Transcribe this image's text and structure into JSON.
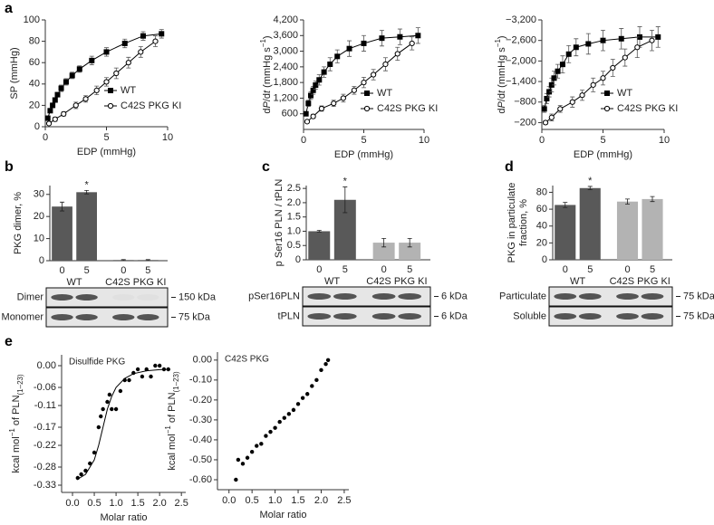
{
  "chart_data": [
    {
      "type": "line",
      "panel": "a",
      "xlabel": "EDP (mmHg)",
      "ylabel": "SP (mmHg)",
      "xlim": [
        0,
        10
      ],
      "xticks": [
        0,
        5,
        10
      ],
      "ylim": [
        0,
        100
      ],
      "yticks": [
        0,
        20,
        40,
        60,
        80,
        100
      ],
      "legend": "lower right",
      "series": [
        {
          "name": "WT",
          "color": "#000000",
          "marker": "square",
          "fill": "#000000",
          "x": [
            0.2,
            0.4,
            0.6,
            0.8,
            1,
            1.3,
            1.7,
            2.2,
            2.8,
            3.8,
            5,
            6.5,
            8,
            9.5
          ],
          "values": [
            8,
            15,
            20,
            25,
            30,
            36,
            42,
            48,
            54,
            62,
            70,
            78,
            85,
            87
          ],
          "errors": [
            1,
            2,
            2,
            2,
            2,
            3,
            3,
            3,
            3,
            4,
            4,
            4,
            4,
            4
          ]
        },
        {
          "name": "C42S PKG KI",
          "color": "#000000",
          "marker": "circle",
          "fill": "#ffffff",
          "x": [
            0.3,
            0.8,
            1.5,
            2.5,
            3.3,
            4.2,
            5,
            5.8,
            6.8,
            7.8,
            9
          ],
          "values": [
            3,
            7,
            12,
            20,
            26,
            34,
            42,
            50,
            60,
            70,
            80
          ],
          "errors": [
            1,
            2,
            2,
            3,
            3,
            4,
            4,
            5,
            5,
            5,
            5
          ]
        }
      ]
    },
    {
      "type": "line",
      "xlabel": "EDP (mmHg)",
      "ylabel": [
        "d",
        {
          "italic": "P"
        },
        "/d",
        {
          "italic": "t"
        },
        " (mmHg s",
        {
          "sup": "−1"
        },
        ")"
      ],
      "xlim": [
        0,
        10
      ],
      "xticks": [
        0,
        5,
        10
      ],
      "ylim": [
        0,
        4200
      ],
      "yticks": [
        600,
        {
          "value": 1200,
          "label": "1,200"
        },
        {
          "value": 1800,
          "label": "1,800"
        },
        {
          "value": 2400,
          "label": "2,400"
        },
        {
          "value": 3000,
          "label": "3,000"
        },
        {
          "value": 3600,
          "label": "3,600"
        },
        {
          "value": 4200,
          "label": "4,200"
        }
      ],
      "legend": "lower right",
      "series": [
        {
          "name": "WT",
          "color": "#000000",
          "marker": "square",
          "fill": "#000000",
          "x": [
            0.2,
            0.4,
            0.6,
            0.8,
            1,
            1.3,
            1.7,
            2.2,
            2.8,
            3.8,
            5,
            6.5,
            8,
            9.5
          ],
          "values": [
            600,
            1000,
            1300,
            1500,
            1700,
            1900,
            2200,
            2500,
            2800,
            3100,
            3300,
            3500,
            3550,
            3600
          ],
          "errors": [
            80,
            120,
            150,
            150,
            150,
            200,
            200,
            250,
            250,
            300,
            300,
            300,
            300,
            300
          ]
        },
        {
          "name": "C42S PKG KI",
          "color": "#000000",
          "marker": "circle",
          "fill": "#ffffff",
          "x": [
            0.3,
            0.8,
            1.5,
            2.5,
            3.3,
            4.2,
            5,
            5.8,
            6.8,
            7.8,
            9
          ],
          "values": [
            300,
            500,
            800,
            1000,
            1200,
            1500,
            1800,
            2100,
            2500,
            2900,
            3300
          ],
          "errors": [
            50,
            80,
            100,
            120,
            150,
            150,
            200,
            200,
            250,
            250,
            250
          ]
        }
      ]
    },
    {
      "type": "line",
      "xlabel": "EDP (mmHg)",
      "ylabel": [
        "d",
        {
          "italic": "P"
        },
        "/d",
        {
          "italic": "t"
        },
        " (mmHg s",
        {
          "sup": "−1"
        },
        ")"
      ],
      "xlim": [
        0,
        10
      ],
      "xticks": [
        0,
        5,
        10
      ],
      "ylim": [
        0,
        -3200
      ],
      "yticks": [
        {
          "value": -200,
          "label": "−200"
        },
        {
          "value": -800,
          "label": "−800"
        },
        {
          "value": -1400,
          "label": "−1,400"
        },
        {
          "value": -2000,
          "label": "−2,000"
        },
        {
          "value": -2600,
          "label": "−2,600"
        },
        {
          "value": -3200,
          "label": "−3,200"
        }
      ],
      "legend": "lower right",
      "series": [
        {
          "name": "WT",
          "color": "#000000",
          "marker": "square",
          "fill": "#000000",
          "x": [
            0.2,
            0.4,
            0.6,
            0.8,
            1,
            1.3,
            1.7,
            2.2,
            2.8,
            3.8,
            5,
            6.5,
            8,
            9.5
          ],
          "values": [
            -600,
            -900,
            -1100,
            -1300,
            -1500,
            -1700,
            -1900,
            -2200,
            -2400,
            -2500,
            -2600,
            -2650,
            -2700,
            -2700
          ],
          "errors": [
            100,
            150,
            150,
            200,
            200,
            200,
            250,
            250,
            250,
            300,
            300,
            300,
            300,
            300
          ]
        },
        {
          "name": "C42S PKG KI",
          "color": "#000000",
          "marker": "circle",
          "fill": "#ffffff",
          "x": [
            0.3,
            0.8,
            1.5,
            2.5,
            3.3,
            4.2,
            5,
            5.8,
            6.8,
            7.8,
            9
          ],
          "values": [
            -200,
            -350,
            -600,
            -800,
            -1000,
            -1300,
            -1500,
            -1800,
            -2100,
            -2400,
            -2600
          ],
          "errors": [
            50,
            100,
            100,
            150,
            150,
            200,
            200,
            250,
            250,
            300,
            300
          ]
        }
      ]
    },
    {
      "type": "bar",
      "panel": "b",
      "ylabel": "PKG dimer, %",
      "ylim": [
        0,
        34
      ],
      "yticks": [
        0,
        10,
        20,
        30
      ],
      "groups": [
        {
          "name": "WT",
          "color": "#595959",
          "categories": [
            "0",
            "5"
          ],
          "values": [
            24.5,
            31
          ],
          "errors": [
            2,
            0.8
          ],
          "labels": [
            null,
            "*"
          ]
        },
        {
          "name": "C42S PKG KI",
          "color": "#595959",
          "categories": [
            "0",
            "5"
          ],
          "values": [
            0.3,
            0.3
          ],
          "errors": [
            0.2,
            0.2
          ],
          "labels": [
            null,
            null
          ]
        }
      ],
      "blot": {
        "rows": [
          "Dimer",
          "Monomer"
        ],
        "markers": [
          "150 kDa",
          "75 kDa"
        ]
      }
    },
    {
      "type": "bar",
      "panel": "c",
      "ylabel": "p Ser16 PLN / tPLN",
      "ylim": [
        0,
        2.6
      ],
      "yticks": [
        0,
        0.5,
        {
          "value": 1,
          "label": "1.0"
        },
        1.5,
        {
          "value": 2,
          "label": "2.0"
        },
        2.5
      ],
      "groups": [
        {
          "name": "WT",
          "color": "#595959",
          "categories": [
            "0",
            "5"
          ],
          "values": [
            1.0,
            2.1
          ],
          "errors": [
            0.03,
            0.45
          ],
          "labels": [
            null,
            "*"
          ]
        },
        {
          "name": "C42S PKG KI",
          "color": "#b3b3b3",
          "categories": [
            "0",
            "5"
          ],
          "values": [
            0.6,
            0.6
          ],
          "errors": [
            0.15,
            0.15
          ],
          "labels": [
            null,
            null
          ]
        }
      ],
      "blot": {
        "rows": [
          "pSer16PLN",
          "tPLN"
        ],
        "markers": [
          "6 kDa",
          "6 kDa"
        ]
      }
    },
    {
      "type": "bar",
      "panel": "d",
      "ylabel_lines": [
        "PKG in particulate",
        "fraction, %"
      ],
      "ylim": [
        0,
        88
      ],
      "yticks": [
        0,
        20,
        40,
        60,
        80
      ],
      "groups": [
        {
          "name": "WT",
          "color": "#595959",
          "categories": [
            "0",
            "5"
          ],
          "values": [
            65,
            85
          ],
          "errors": [
            3,
            2
          ],
          "labels": [
            null,
            "*"
          ]
        },
        {
          "name": "C42S PKG KI",
          "color": "#b3b3b3",
          "categories": [
            "0",
            "5"
          ],
          "values": [
            69,
            72
          ],
          "errors": [
            3,
            3
          ],
          "labels": [
            null,
            null
          ]
        }
      ],
      "blot": {
        "rows": [
          "Particulate",
          "Soluble"
        ],
        "markers": [
          "75 kDa",
          "75 kDa"
        ]
      }
    },
    {
      "type": "scatter",
      "panel": "e",
      "annotation": "Disulfide PKG",
      "xlabel": "Molar ratio",
      "ylabel": [
        "kcal mol",
        {
          "sup": "−1"
        },
        " of PLN",
        {
          "sub": "(1–23)"
        }
      ],
      "xlim": [
        -0.25,
        2.6
      ],
      "xticks": [
        {
          "value": 0,
          "label": "0.0"
        },
        0.5,
        {
          "value": 1,
          "label": "1.0"
        },
        1.5,
        {
          "value": 2,
          "label": "2.0"
        },
        2.5
      ],
      "ylim": [
        -0.35,
        0.03
      ],
      "yticks": [
        {
          "value": 0,
          "label": "0.00"
        },
        -0.06,
        -0.11,
        -0.17,
        -0.22,
        -0.28,
        -0.33
      ],
      "series": [
        {
          "color": "#000000",
          "x": [
            0.12,
            0.2,
            0.3,
            0.4,
            0.5,
            0.6,
            0.65,
            0.7,
            0.8,
            0.85,
            0.9,
            1.0,
            1.1,
            1.2,
            1.3,
            1.4,
            1.5,
            1.6,
            1.7,
            1.8,
            1.9,
            2.0,
            2.1,
            2.2
          ],
          "values": [
            -0.31,
            -0.3,
            -0.29,
            -0.27,
            -0.24,
            -0.17,
            -0.14,
            -0.12,
            -0.1,
            -0.08,
            -0.12,
            -0.12,
            -0.07,
            -0.04,
            -0.04,
            -0.02,
            -0.01,
            -0.03,
            -0.01,
            -0.03,
            0.0,
            0.0,
            -0.01,
            -0.01
          ]
        }
      ],
      "fit": {
        "x": [
          0.1,
          0.3,
          0.5,
          0.6,
          0.7,
          0.8,
          0.9,
          1.0,
          1.2,
          1.4,
          1.7,
          2.0,
          2.2
        ],
        "values": [
          -0.315,
          -0.3,
          -0.26,
          -0.22,
          -0.17,
          -0.12,
          -0.085,
          -0.06,
          -0.035,
          -0.022,
          -0.014,
          -0.011,
          -0.01
        ]
      }
    },
    {
      "type": "scatter",
      "annotation": "C42S PKG",
      "xlabel": "Molar ratio",
      "ylabel": [
        "kcal mol",
        {
          "sup": "−1"
        },
        " of PLN",
        {
          "sub": "(1–23)"
        }
      ],
      "xlim": [
        -0.25,
        2.6
      ],
      "xticks": [
        {
          "value": 0,
          "label": "0.0"
        },
        0.5,
        {
          "value": 1,
          "label": "1.0"
        },
        1.5,
        {
          "value": 2,
          "label": "2.0"
        },
        2.5
      ],
      "ylim": [
        -0.65,
        0.04
      ],
      "yticks": [
        {
          "value": 0,
          "label": "0.00"
        },
        {
          "value": -0.1,
          "label": "-0.10"
        },
        {
          "value": -0.2,
          "label": "-0.20"
        },
        {
          "value": -0.3,
          "label": "-0.30"
        },
        {
          "value": -0.4,
          "label": "-0.40"
        },
        {
          "value": -0.5,
          "label": "-0.50"
        },
        {
          "value": -0.6,
          "label": "-0.60"
        }
      ],
      "series": [
        {
          "color": "#000000",
          "x": [
            0.15,
            0.2,
            0.3,
            0.4,
            0.5,
            0.6,
            0.7,
            0.8,
            0.9,
            1.0,
            1.1,
            1.2,
            1.3,
            1.4,
            1.5,
            1.6,
            1.7,
            1.8,
            1.9,
            2.0,
            2.1,
            2.15
          ],
          "values": [
            -0.6,
            -0.5,
            -0.52,
            -0.49,
            -0.46,
            -0.43,
            -0.42,
            -0.38,
            -0.36,
            -0.34,
            -0.31,
            -0.29,
            -0.27,
            -0.25,
            -0.22,
            -0.19,
            -0.17,
            -0.13,
            -0.1,
            -0.05,
            -0.02,
            0.0
          ]
        }
      ]
    }
  ]
}
